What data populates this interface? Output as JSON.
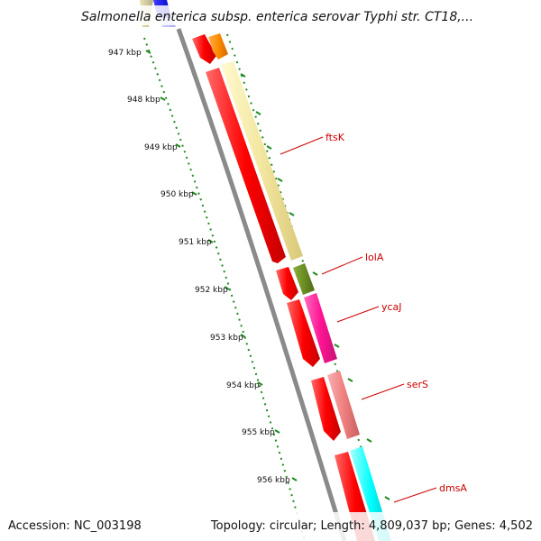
{
  "title": "Salmonella enterica subsp. enterica serovar Typhi str. CT18,...",
  "footer": {
    "accession": "Accession: NC_003198",
    "topology": "Topology: circular; Length: 4,809,037 bp; Genes: 4,502"
  },
  "kbp_labels": [
    "947 kbp",
    "948 kbp",
    "949 kbp",
    "950 kbp",
    "951 kbp",
    "952 kbp",
    "953 kbp",
    "954 kbp",
    "955 kbp",
    "956 kbp"
  ],
  "gene_labels": [
    "ftsK",
    "lolA",
    "ycaJ",
    "serS",
    "dmsA"
  ],
  "colors": {
    "accent_label": "#cc0000",
    "cds": "#ff0000",
    "ftsK": "#f0e68c",
    "lolA": "#6b8e23",
    "ycaJ": "#ff1493",
    "serS": "#f08080",
    "dmsA": "#00ffff",
    "orange": "#ff8c00",
    "blue": "#0000ff",
    "ticks": "#228b22",
    "backbone": "#808080"
  }
}
